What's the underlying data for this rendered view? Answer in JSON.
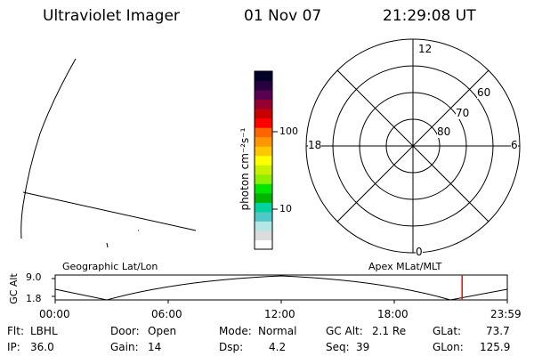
{
  "header": {
    "instrument": "Ultraviolet Imager",
    "date": "01 Nov 07",
    "time": "21:29:08 UT"
  },
  "colorbar": {
    "unit_label": "photon cm⁻²s⁻¹",
    "tick_labels": [
      "100",
      "10"
    ],
    "colors": [
      "#ffffff",
      "#dcdcdc",
      "#b4e6e6",
      "#50c8c8",
      "#00d2a0",
      "#00b400",
      "#00e600",
      "#8cf000",
      "#c8f000",
      "#ffff00",
      "#ffc800",
      "#ff9600",
      "#ff6400",
      "#ff0000",
      "#c80000",
      "#960030",
      "#5a0050",
      "#280040",
      "#000028"
    ]
  },
  "polar": {
    "mlt_labels": {
      "top": "12",
      "left": "18",
      "right": "6",
      "bottom": "0"
    },
    "lat_labels": [
      "60",
      "70",
      "80"
    ]
  },
  "timeline": {
    "left_label": "Geographic Lat/Lon",
    "right_label": "Apex  MLat/MLT",
    "axis_label": "GC Alt",
    "y_ticks": [
      "9.0",
      "1.8"
    ],
    "x_ticks": [
      "00:00",
      "06:00",
      "12:00",
      "18:00",
      "23:59"
    ],
    "current_time_fraction": 0.9,
    "marker_color": "#ff0000"
  },
  "info": {
    "filter_label": "Flt:",
    "filter_value": "LBHL",
    "ip_label": "IP:",
    "ip_value": "36.0",
    "door_label": "Door:",
    "door_value": "Open",
    "gain_label": "Gain:",
    "gain_value": "14",
    "mode_label": "Mode:",
    "mode_value": "Normal",
    "dsp_label": "Dsp:",
    "dsp_value": "4.2",
    "gcalt_label": "GC Alt:",
    "gcalt_value": "2.1 Re",
    "seq_label": "Seq:",
    "seq_value": "39",
    "glat_label": "GLat:",
    "glat_value": "73.7",
    "glon_label": "GLon:",
    "glon_value": "125.9"
  }
}
